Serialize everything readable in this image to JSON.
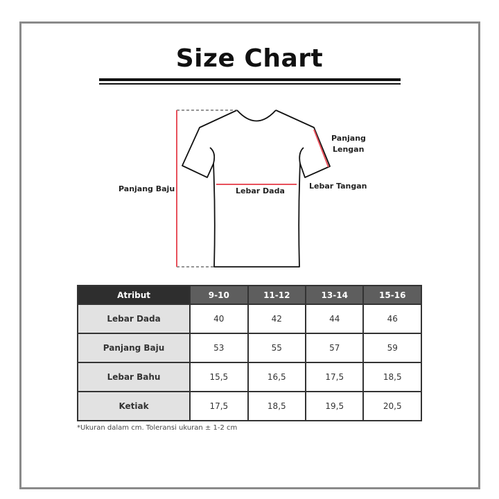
{
  "title": "Size Chart",
  "diagram_labels": {
    "panjang_baju": "Panjang Baju",
    "lebar_dada": "Lebar Dada",
    "panjang_lengan_1": "Panjang",
    "panjang_lengan_2": "Lengan",
    "lebar_tangan": "Lebar Tangan"
  },
  "colors": {
    "measure_line": "#e8505b",
    "header_dark": "#2e2e2e",
    "header": "#5e5e5e",
    "attr_bg": "#e2e2e2"
  },
  "table": {
    "headers": [
      "Atribut",
      "9-10",
      "11-12",
      "13-14",
      "15-16"
    ],
    "rows": [
      {
        "attr": "Lebar Dada",
        "values": [
          "40",
          "42",
          "44",
          "46"
        ]
      },
      {
        "attr": "Panjang Baju",
        "values": [
          "53",
          "55",
          "57",
          "59"
        ]
      },
      {
        "attr": "Lebar Bahu",
        "values": [
          "15,5",
          "16,5",
          "17,5",
          "18,5"
        ]
      },
      {
        "attr": "Ketiak",
        "values": [
          "17,5",
          "18,5",
          "19,5",
          "20,5"
        ]
      }
    ]
  },
  "note": "*Ukuran dalam cm. Toleransi ukuran ± 1-2 cm"
}
